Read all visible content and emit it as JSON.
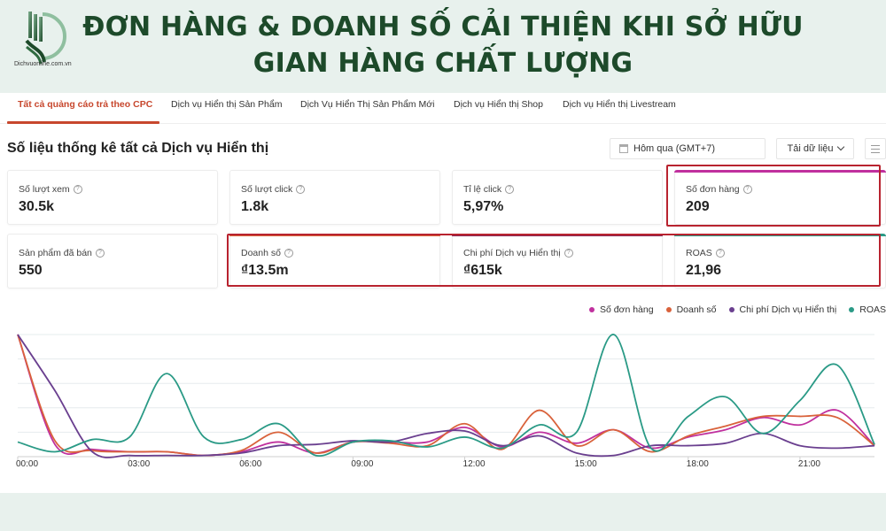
{
  "header": {
    "logo_text": "Dichvuonline.com.vn",
    "headline_line1": "ĐƠN HÀNG & DOANH SỐ CẢI THIỆN KHI SỞ HỮU",
    "headline_line2": "GIAN HÀNG CHẤT LƯỢNG"
  },
  "tabs": [
    {
      "label": "Tất cả quảng cáo trả theo CPC",
      "active": true
    },
    {
      "label": "Dịch vụ Hiển thị Sản Phẩm",
      "active": false
    },
    {
      "label": "Dịch Vụ Hiển Thị Sản Phẩm Mới",
      "active": false
    },
    {
      "label": "Dịch vụ Hiển thị Shop",
      "active": false
    },
    {
      "label": "Dịch vụ Hiển thị Livestream",
      "active": false
    }
  ],
  "section_title": "Số liệu thống kê tất cả Dịch vụ Hiển thị",
  "toolbar": {
    "date_range": "Hôm qua (GMT+7)",
    "download_label": "Tải dữ liệu",
    "menu_icon": "hamburger-icon"
  },
  "metrics": [
    {
      "label": "Số lượt xem",
      "value": "30.5k"
    },
    {
      "label": "Số lượt click",
      "value": "1.8k"
    },
    {
      "label": "Tỉ lệ click",
      "value": "5,97%"
    },
    {
      "label": "Số đơn hàng",
      "value": "209",
      "bar_color": "#c0309e"
    },
    {
      "label": "Sản phẩm đã bán",
      "value": "550"
    },
    {
      "label": "Doanh số",
      "value": "₫13.5m",
      "bar_color": "#d9623b"
    },
    {
      "label": "Chi phí Dịch vụ Hiển thị",
      "value": "₫615k",
      "bar_color": "#8a2a55"
    },
    {
      "label": "ROAS",
      "value": "21,96",
      "bar_color": "#2a9a86"
    }
  ],
  "colors": {
    "accent": "#c7472d",
    "highlight_box": "#b8232f",
    "headline": "#1d4a2a",
    "background": "#e8f1ed"
  },
  "chart_data": {
    "type": "line",
    "title": "",
    "xlabel": "",
    "ylabel": "",
    "grid": true,
    "legend_position": "top-right",
    "x": [
      "00:00",
      "01:00",
      "02:00",
      "03:00",
      "04:00",
      "05:00",
      "06:00",
      "07:00",
      "08:00",
      "09:00",
      "10:00",
      "11:00",
      "12:00",
      "13:00",
      "14:00",
      "15:00",
      "16:00",
      "17:00",
      "18:00",
      "19:00",
      "20:00",
      "21:00",
      "22:00",
      "23:00"
    ],
    "xticks": [
      "00:00",
      "03:00",
      "06:00",
      "09:00",
      "12:00",
      "15:00",
      "18:00",
      "21:00"
    ],
    "ylim": [
      0,
      100
    ],
    "y_units": "relative (normalized per series, no y-axis labels shown)",
    "series": [
      {
        "name": "Số đơn hàng",
        "color": "#c0309e",
        "values": [
          100,
          10,
          6,
          4,
          4,
          1,
          4,
          12,
          3,
          12,
          12,
          12,
          24,
          8,
          20,
          11,
          22,
          7,
          16,
          22,
          32,
          26,
          38,
          9
        ]
      },
      {
        "name": "Doanh số",
        "color": "#d9623b",
        "values": [
          100,
          13,
          5,
          4,
          4,
          1,
          5,
          20,
          3,
          12,
          11,
          9,
          27,
          6,
          38,
          9,
          22,
          4,
          17,
          25,
          33,
          33,
          32,
          9
        ]
      },
      {
        "name": "Chi phí Dịch vụ Hiển thị",
        "color": "#6a3f8f",
        "values": [
          100,
          54,
          4,
          1,
          1,
          1,
          3,
          9,
          10,
          13,
          12,
          19,
          21,
          9,
          17,
          3,
          1,
          9,
          9,
          11,
          19,
          9,
          7,
          9
        ]
      },
      {
        "name": "ROAS",
        "color": "#2a9a86",
        "values": [
          12,
          4,
          14,
          16,
          68,
          16,
          14,
          27,
          1,
          12,
          13,
          8,
          16,
          7,
          26,
          20,
          100,
          7,
          33,
          49,
          19,
          46,
          75,
          10
        ]
      }
    ]
  }
}
